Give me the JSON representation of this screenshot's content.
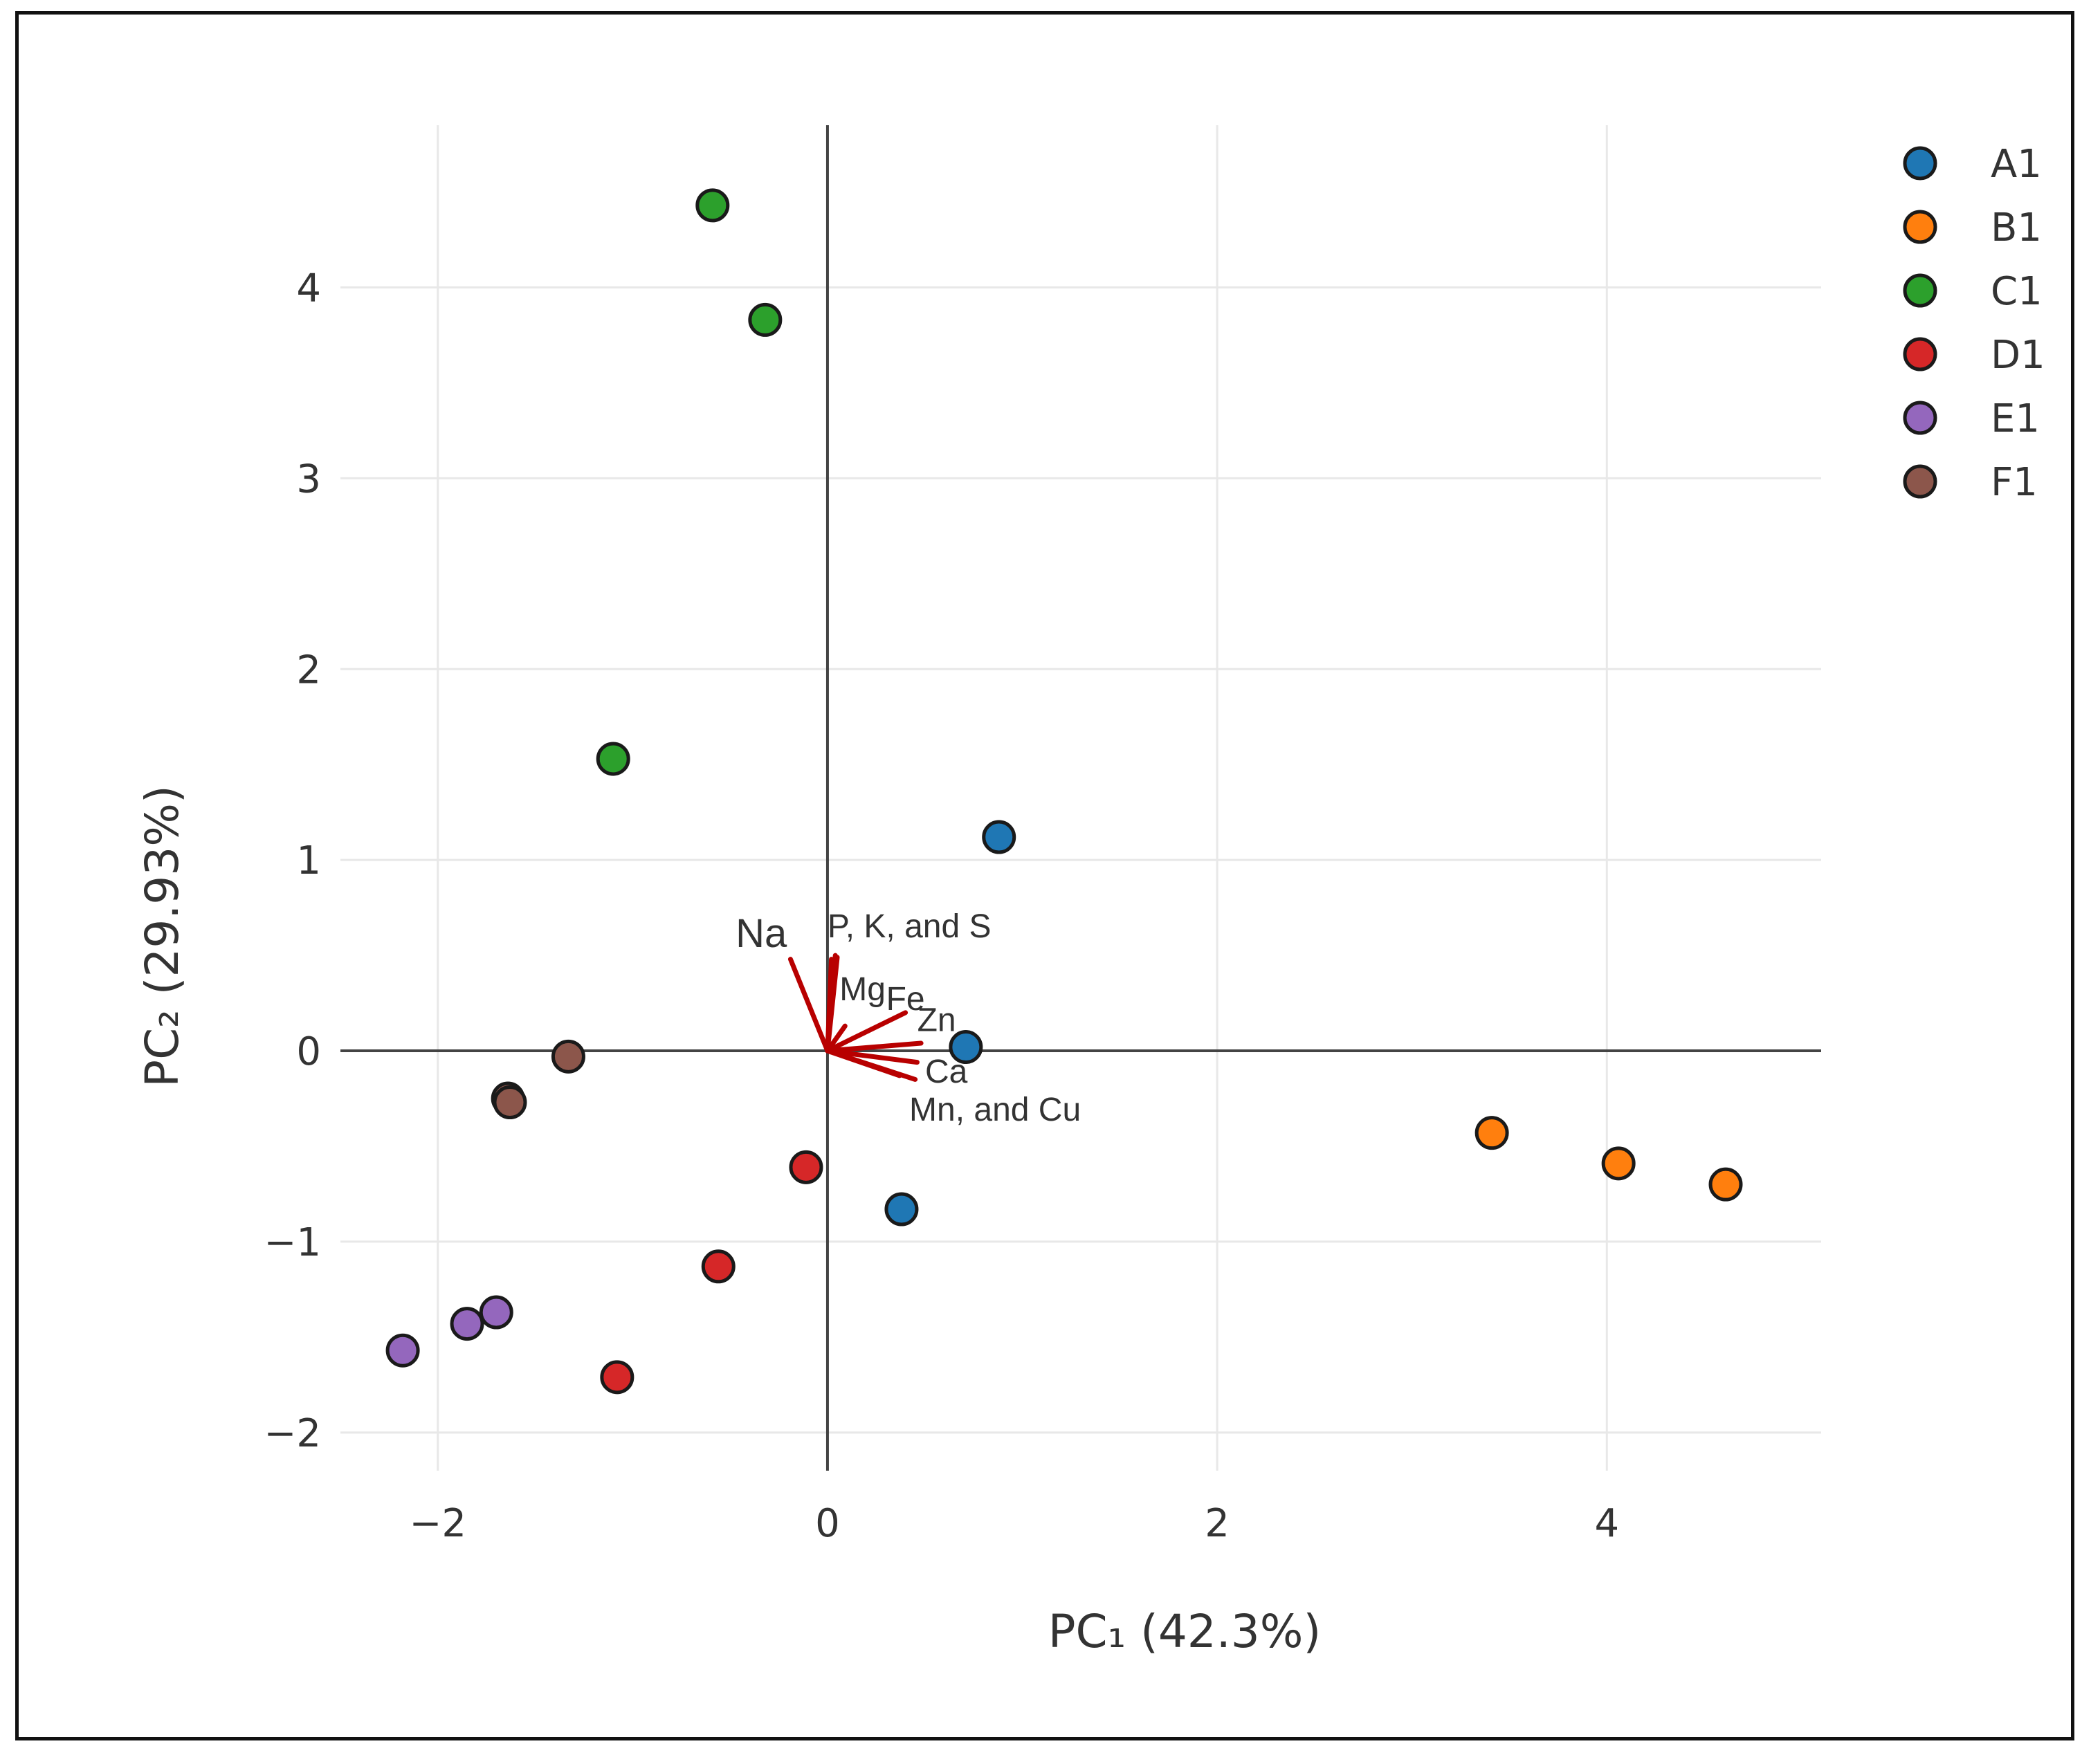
{
  "chart_data": {
    "type": "scatter",
    "title": "",
    "xlabel": "PC₁ (42.3%)",
    "ylabel": "PC₂ (29.93%)",
    "xlim": [
      -2.5,
      5.1
    ],
    "ylim": [
      -2.2,
      4.85
    ],
    "xticks": [
      -2,
      0,
      2,
      4
    ],
    "yticks": [
      -2,
      -1,
      0,
      1,
      2,
      3,
      4
    ],
    "xtick_labels": [
      "−2",
      "0",
      "2",
      "4"
    ],
    "ytick_labels": [
      "−2",
      "−1",
      "0",
      "1",
      "2",
      "3",
      "4"
    ],
    "grid": true,
    "legend_position": "top-right",
    "series": [
      {
        "name": "A1",
        "color": "#1f77b4",
        "points": [
          [
            0.88,
            1.12
          ],
          [
            0.71,
            0.02
          ],
          [
            0.38,
            -0.83
          ]
        ]
      },
      {
        "name": "B1",
        "color": "#ff7f0e",
        "points": [
          [
            3.41,
            -0.43
          ],
          [
            4.06,
            -0.59
          ],
          [
            4.61,
            -0.7
          ]
        ]
      },
      {
        "name": "C1",
        "color": "#2ca02c",
        "points": [
          [
            -0.59,
            4.43
          ],
          [
            -0.32,
            3.83
          ],
          [
            -1.1,
            1.53
          ]
        ]
      },
      {
        "name": "D1",
        "color": "#d62728",
        "points": [
          [
            -0.11,
            -0.61
          ],
          [
            -0.56,
            -1.13
          ],
          [
            -1.08,
            -1.71
          ]
        ]
      },
      {
        "name": "E1",
        "color": "#9467bd",
        "points": [
          [
            -1.7,
            -1.37
          ],
          [
            -1.85,
            -1.43
          ],
          [
            -2.18,
            -1.57
          ]
        ]
      },
      {
        "name": "F1",
        "color": "#8c564b",
        "points": [
          [
            -1.33,
            -0.03
          ],
          [
            -1.64,
            -0.25
          ],
          [
            -1.63,
            -0.27
          ]
        ]
      }
    ],
    "loadings": {
      "color": "#b80000",
      "vectors": [
        {
          "name": "Na",
          "x": -0.19,
          "y": 0.48
        },
        {
          "name": "P",
          "x": 0.04,
          "y": 0.5
        },
        {
          "name": "K",
          "x": 0.02,
          "y": 0.48
        },
        {
          "name": "S",
          "x": 0.05,
          "y": 0.49
        },
        {
          "name": "Mg",
          "x": 0.09,
          "y": 0.13
        },
        {
          "name": "Fe",
          "x": 0.4,
          "y": 0.2
        },
        {
          "name": "Zn",
          "x": 0.48,
          "y": 0.04
        },
        {
          "name": "Ca",
          "x": 0.46,
          "y": -0.06
        },
        {
          "name": "Mn",
          "x": 0.45,
          "y": -0.15
        },
        {
          "name": "Cu",
          "x": 0.37,
          "y": -0.13
        }
      ],
      "labels": [
        {
          "text": "Na",
          "x": -0.34,
          "y": 0.6,
          "size": "large"
        },
        {
          "text": "P, K, and S",
          "x": 0.42,
          "y": 0.64,
          "size": "small"
        },
        {
          "text": "Mg",
          "x": 0.18,
          "y": 0.31,
          "size": "small"
        },
        {
          "text": "Fe",
          "x": 0.4,
          "y": 0.26,
          "size": "small"
        },
        {
          "text": "Zn",
          "x": 0.56,
          "y": 0.15,
          "size": "small"
        },
        {
          "text": "Ca",
          "x": 0.61,
          "y": -0.12,
          "size": "small"
        },
        {
          "text": "Mn, and Cu",
          "x": 0.86,
          "y": -0.32,
          "size": "small"
        }
      ]
    }
  }
}
